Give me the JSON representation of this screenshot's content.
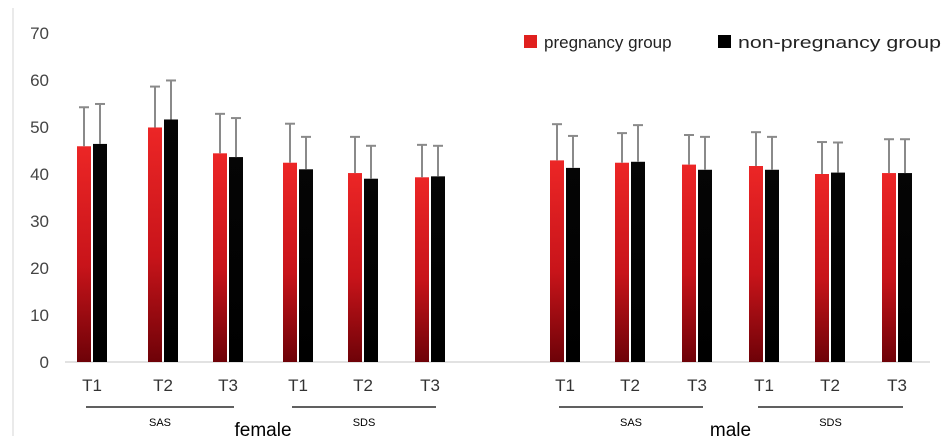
{
  "chart_data": {
    "type": "bar",
    "ylim": [
      0,
      70
    ],
    "yticks": [
      0,
      10,
      20,
      30,
      40,
      50,
      60,
      70
    ],
    "grid": false,
    "legend_position": "top-right",
    "categories": [
      "T1",
      "T2",
      "T3",
      "T1",
      "T2",
      "T3",
      "T1",
      "T2",
      "T3",
      "T1",
      "T2",
      "T3"
    ],
    "series": [
      {
        "name": "pregnancy group",
        "color": "#e0201e",
        "values": [
          45.9,
          49.9,
          44.4,
          42.4,
          40.2,
          39.3,
          42.9,
          42.4,
          42.0,
          41.7,
          40.0,
          40.2
        ],
        "errors": [
          8.3,
          8.7,
          8.4,
          8.3,
          7.7,
          6.9,
          7.7,
          6.3,
          6.3,
          7.2,
          6.8,
          7.2
        ]
      },
      {
        "name": "non-pregnancy group",
        "color": "#000000",
        "values": [
          46.4,
          51.6,
          43.6,
          41.0,
          39.0,
          39.5,
          41.3,
          42.6,
          40.9,
          40.9,
          40.3,
          40.2
        ],
        "errors": [
          8.5,
          8.3,
          8.3,
          6.9,
          7.0,
          6.5,
          6.8,
          7.8,
          7.0,
          7.0,
          6.4,
          7.2
        ]
      }
    ],
    "group_labels": [
      {
        "label": "SAS",
        "from": 0,
        "to": 2
      },
      {
        "label": "SDS",
        "from": 3,
        "to": 5
      },
      {
        "label": "SAS",
        "from": 6,
        "to": 8
      },
      {
        "label": "SDS",
        "from": 9,
        "to": 11
      }
    ],
    "section_labels": [
      {
        "label": "female",
        "after_category": 2
      },
      {
        "label": "male",
        "after_category": 8
      }
    ]
  }
}
